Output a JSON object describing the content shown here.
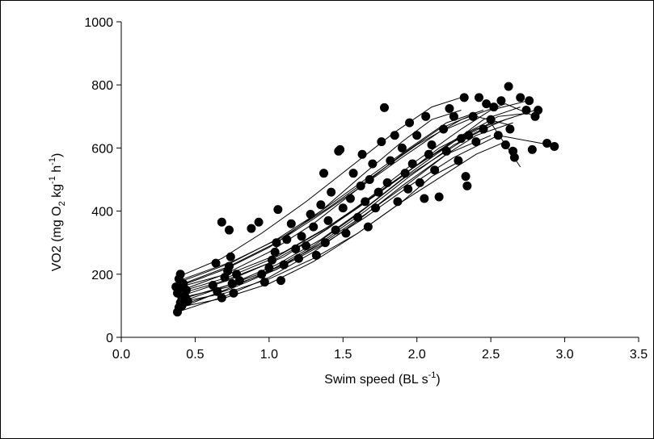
{
  "chart_data": {
    "type": "scatter",
    "title": "",
    "xlabel": {
      "main": "Swim speed (BL s",
      "sup": "-1",
      "end": ")"
    },
    "ylabel": {
      "p1": "VO2 (mg O",
      "sub": "2",
      "p2": " kg",
      "sup1": "-1",
      "p3": " h",
      "sup2": "-1",
      "p4": ")"
    },
    "xlim": [
      0.0,
      3.5
    ],
    "ylim": [
      0,
      1000
    ],
    "xticks": [
      "0.0",
      "0.5",
      "1.0",
      "1.5",
      "2.0",
      "2.5",
      "3.0",
      "3.5"
    ],
    "yticks": [
      "0",
      "200",
      "400",
      "600",
      "800",
      "1000"
    ],
    "grid": false,
    "legend": "none",
    "marker_color": "#000000",
    "line_color": "#000000",
    "series": [
      {
        "x": [
          0.38,
          0.7,
          1.0,
          1.3,
          1.6,
          1.9,
          2.2,
          2.4,
          2.6
        ],
        "y": [
          90,
          150,
          210,
          290,
          390,
          500,
          590,
          650,
          690
        ]
      },
      {
        "x": [
          0.39,
          0.72,
          1.05,
          1.35,
          1.65,
          1.95,
          2.25,
          2.45,
          2.7
        ],
        "y": [
          110,
          165,
          230,
          310,
          410,
          520,
          620,
          690,
          730
        ]
      },
      {
        "x": [
          0.4,
          0.75,
          1.1,
          1.4,
          1.7,
          2.0,
          2.3,
          2.5,
          2.75
        ],
        "y": [
          130,
          185,
          255,
          345,
          450,
          560,
          660,
          720,
          750
        ]
      },
      {
        "x": [
          0.41,
          0.7,
          1.0,
          1.3,
          1.6,
          1.9,
          2.15,
          2.35
        ],
        "y": [
          150,
          200,
          270,
          360,
          470,
          580,
          660,
          700
        ]
      },
      {
        "x": [
          0.42,
          0.73,
          1.05,
          1.35,
          1.62,
          1.9,
          2.1,
          2.3
        ],
        "y": [
          170,
          225,
          300,
          400,
          510,
          620,
          690,
          720
        ]
      },
      {
        "x": [
          0.4,
          0.68,
          0.95,
          1.25,
          1.55,
          1.85,
          2.1,
          2.3
        ],
        "y": [
          195,
          250,
          330,
          430,
          540,
          650,
          730,
          760
        ]
      },
      {
        "x": [
          0.38,
          0.7,
          1.0,
          1.3,
          1.6,
          1.9,
          2.2,
          2.5
        ],
        "y": [
          80,
          130,
          190,
          270,
          370,
          480,
          580,
          640
        ]
      },
      {
        "x": [
          0.4,
          0.72,
          1.05,
          1.35,
          1.65,
          1.95,
          2.2,
          2.4,
          2.65
        ],
        "y": [
          120,
          165,
          220,
          295,
          390,
          490,
          580,
          640,
          680
        ]
      },
      {
        "x": [
          0.41,
          0.7,
          1.0,
          1.3,
          1.6,
          1.9,
          2.15,
          2.4,
          2.8
        ],
        "y": [
          140,
          180,
          235,
          315,
          410,
          510,
          600,
          660,
          720
        ]
      },
      {
        "x": [
          0.39,
          0.72,
          1.05,
          1.35,
          1.65,
          1.95,
          2.25,
          2.5
        ],
        "y": [
          100,
          150,
          215,
          300,
          400,
          510,
          610,
          670
        ]
      },
      {
        "x": [
          0.4,
          0.75,
          1.1,
          1.4,
          1.7,
          2.0,
          2.3,
          2.55,
          2.75
        ],
        "y": [
          160,
          205,
          270,
          350,
          445,
          545,
          640,
          700,
          710
        ]
      },
      {
        "x": [
          0.42,
          0.74,
          1.05,
          1.35,
          1.65,
          1.95,
          2.2,
          2.45
        ],
        "y": [
          180,
          235,
          310,
          400,
          500,
          600,
          680,
          720
        ]
      },
      {
        "x": [
          0.38,
          0.7,
          1.0,
          1.3,
          1.6,
          1.9,
          2.2,
          2.4,
          2.6
        ],
        "y": [
          110,
          140,
          185,
          250,
          330,
          430,
          520,
          580,
          620
        ]
      },
      {
        "x": [
          0.4,
          0.73,
          1.05,
          1.35,
          1.65,
          1.95,
          2.25,
          2.55,
          2.9
        ],
        "y": [
          125,
          160,
          215,
          290,
          380,
          480,
          570,
          640,
          610
        ]
      },
      {
        "x": [
          0.41,
          0.7,
          1.0,
          1.3,
          1.6,
          1.9,
          2.15,
          2.4,
          2.65
        ],
        "y": [
          165,
          215,
          285,
          375,
          470,
          570,
          650,
          700,
          670
        ]
      },
      {
        "x": [
          0.39,
          0.7,
          1.0,
          1.3,
          1.6,
          1.9,
          2.1,
          2.3
        ],
        "y": [
          95,
          125,
          170,
          240,
          330,
          430,
          510,
          560
        ]
      },
      {
        "x": [
          0.4,
          0.72,
          1.05,
          1.35,
          1.65,
          1.95,
          2.25,
          2.5,
          2.7
        ],
        "y": [
          145,
          190,
          255,
          335,
          430,
          530,
          620,
          680,
          540
        ]
      },
      {
        "x": [
          0.42,
          0.75,
          1.1,
          1.4,
          1.7,
          2.0,
          2.3,
          2.6,
          2.8
        ],
        "y": [
          185,
          240,
          320,
          410,
          510,
          610,
          690,
          740,
          700
        ]
      }
    ],
    "points": [
      [
        0.38,
        80
      ],
      [
        0.39,
        95
      ],
      [
        0.4,
        110
      ],
      [
        0.41,
        125
      ],
      [
        0.38,
        140
      ],
      [
        0.4,
        155
      ],
      [
        0.42,
        170
      ],
      [
        0.39,
        185
      ],
      [
        0.4,
        200
      ],
      [
        0.43,
        130
      ],
      [
        0.44,
        150
      ],
      [
        0.45,
        115
      ],
      [
        0.37,
        160
      ],
      [
        0.41,
        100
      ],
      [
        0.62,
        165
      ],
      [
        0.65,
        145
      ],
      [
        0.68,
        125
      ],
      [
        0.7,
        190
      ],
      [
        0.72,
        210
      ],
      [
        0.73,
        225
      ],
      [
        0.75,
        170
      ],
      [
        0.76,
        140
      ],
      [
        0.74,
        255
      ],
      [
        0.68,
        365
      ],
      [
        0.73,
        340
      ],
      [
        0.64,
        235
      ],
      [
        0.78,
        200
      ],
      [
        0.8,
        180
      ],
      [
        0.88,
        345
      ],
      [
        0.93,
        365
      ],
      [
        0.95,
        200
      ],
      [
        0.97,
        175
      ],
      [
        1.0,
        220
      ],
      [
        1.02,
        245
      ],
      [
        1.04,
        270
      ],
      [
        1.05,
        300
      ],
      [
        1.06,
        405
      ],
      [
        1.08,
        180
      ],
      [
        1.1,
        230
      ],
      [
        1.12,
        310
      ],
      [
        1.15,
        360
      ],
      [
        1.18,
        280
      ],
      [
        1.2,
        250
      ],
      [
        1.22,
        320
      ],
      [
        1.25,
        290
      ],
      [
        1.28,
        390
      ],
      [
        1.3,
        350
      ],
      [
        1.32,
        260
      ],
      [
        1.35,
        420
      ],
      [
        1.37,
        520
      ],
      [
        1.38,
        300
      ],
      [
        1.4,
        370
      ],
      [
        1.42,
        460
      ],
      [
        1.45,
        340
      ],
      [
        1.47,
        590
      ],
      [
        1.48,
        595
      ],
      [
        1.5,
        410
      ],
      [
        1.52,
        330
      ],
      [
        1.55,
        440
      ],
      [
        1.57,
        520
      ],
      [
        1.6,
        380
      ],
      [
        1.62,
        480
      ],
      [
        1.63,
        580
      ],
      [
        1.65,
        430
      ],
      [
        1.67,
        350
      ],
      [
        1.68,
        500
      ],
      [
        1.7,
        550
      ],
      [
        1.72,
        410
      ],
      [
        1.74,
        460
      ],
      [
        1.76,
        620
      ],
      [
        1.78,
        728
      ],
      [
        1.8,
        490
      ],
      [
        1.82,
        560
      ],
      [
        1.85,
        640
      ],
      [
        1.87,
        430
      ],
      [
        1.9,
        600
      ],
      [
        1.92,
        520
      ],
      [
        1.94,
        470
      ],
      [
        1.95,
        680
      ],
      [
        1.97,
        550
      ],
      [
        2.0,
        640
      ],
      [
        2.02,
        490
      ],
      [
        2.05,
        440
      ],
      [
        2.06,
        700
      ],
      [
        2.08,
        580
      ],
      [
        2.1,
        610
      ],
      [
        2.12,
        530
      ],
      [
        2.15,
        445
      ],
      [
        2.18,
        660
      ],
      [
        2.2,
        590
      ],
      [
        2.22,
        725
      ],
      [
        2.25,
        700
      ],
      [
        2.28,
        560
      ],
      [
        2.3,
        630
      ],
      [
        2.32,
        760
      ],
      [
        2.33,
        510
      ],
      [
        2.34,
        480
      ],
      [
        2.35,
        640
      ],
      [
        2.38,
        700
      ],
      [
        2.4,
        620
      ],
      [
        2.42,
        760
      ],
      [
        2.45,
        660
      ],
      [
        2.47,
        740
      ],
      [
        2.5,
        690
      ],
      [
        2.52,
        730
      ],
      [
        2.55,
        640
      ],
      [
        2.57,
        750
      ],
      [
        2.6,
        610
      ],
      [
        2.62,
        795
      ],
      [
        2.63,
        660
      ],
      [
        2.65,
        590
      ],
      [
        2.66,
        570
      ],
      [
        2.7,
        760
      ],
      [
        2.74,
        720
      ],
      [
        2.76,
        750
      ],
      [
        2.78,
        595
      ],
      [
        2.8,
        700
      ],
      [
        2.82,
        720
      ],
      [
        2.88,
        615
      ],
      [
        2.93,
        605
      ]
    ]
  }
}
